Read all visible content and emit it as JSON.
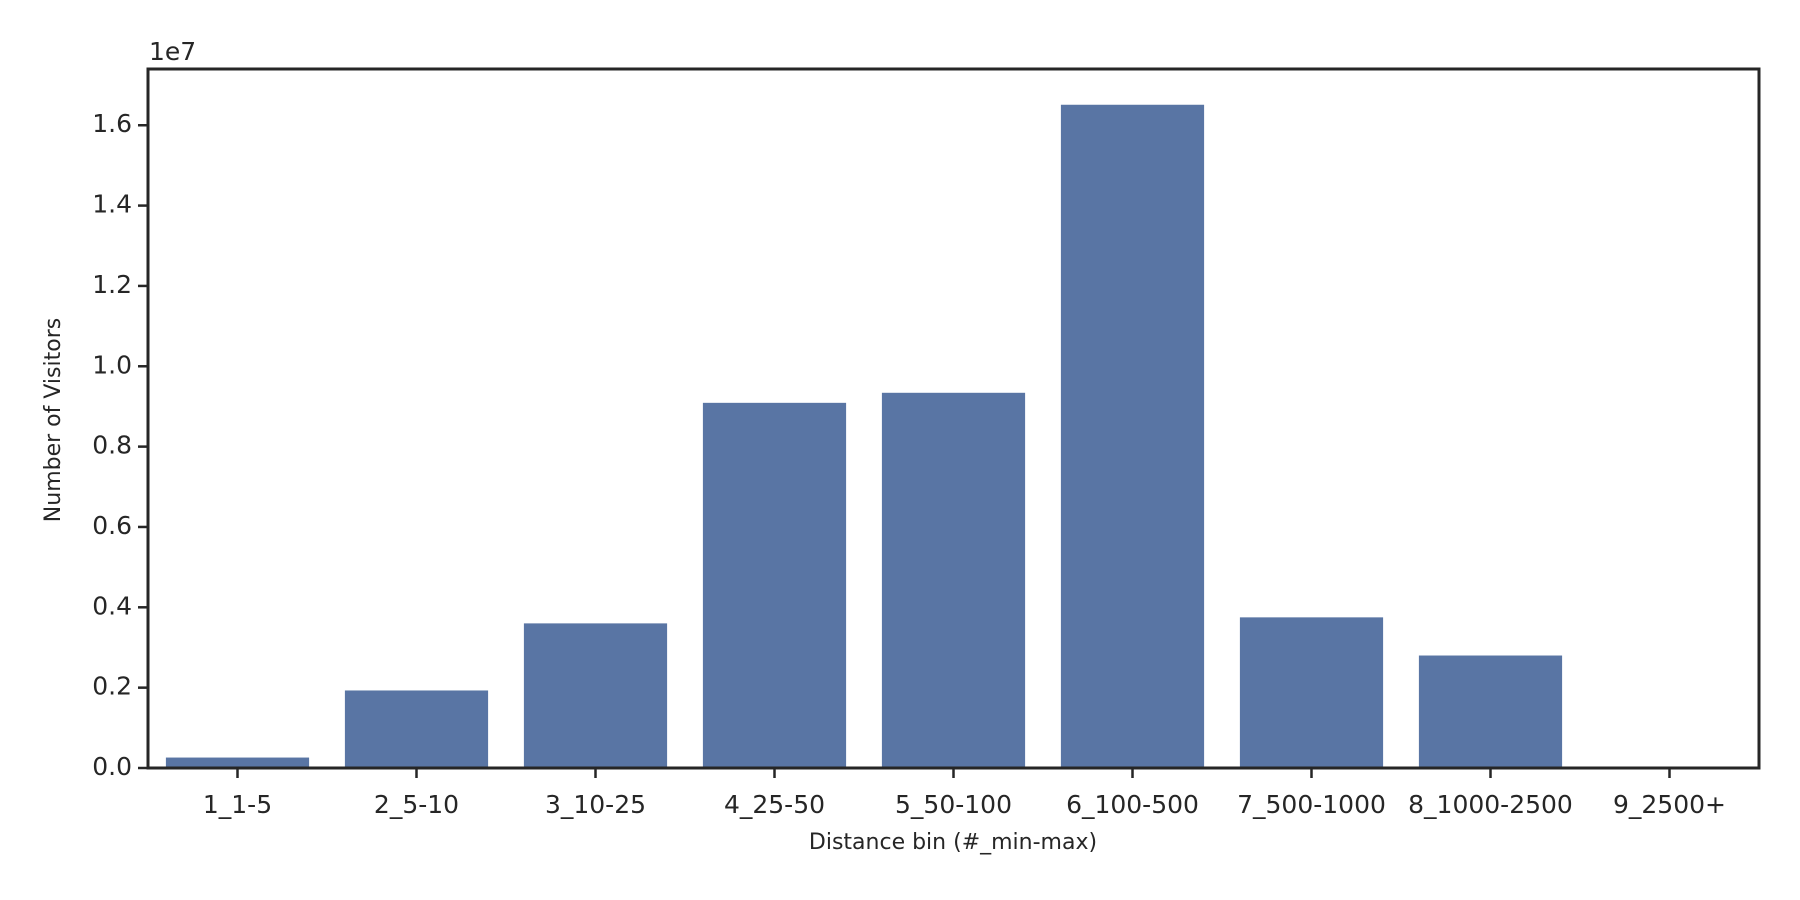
{
  "chart_data": {
    "type": "bar",
    "x_label": "Distance bin (#_min-max)",
    "y_label": "Number of Visitors",
    "y_offset_label": "1e7",
    "categories": [
      "1_1-5",
      "2_5-10",
      "3_10-25",
      "4_25-50",
      "5_50-100",
      "6_100-500",
      "7_500-1000",
      "8_1000-2500",
      "9_2500+"
    ],
    "values": [
      260000,
      1930000,
      3600000,
      9090000,
      9340000,
      16510000,
      3750000,
      2800000,
      0
    ],
    "color": "#5975a4",
    "ylim": [
      0,
      17400000
    ],
    "yticks": [
      {
        "value": 0,
        "label": "0.0"
      },
      {
        "value": 2000000,
        "label": "0.2"
      },
      {
        "value": 4000000,
        "label": "0.4"
      },
      {
        "value": 6000000,
        "label": "0.6"
      },
      {
        "value": 8000000,
        "label": "0.8"
      },
      {
        "value": 10000000,
        "label": "1.0"
      },
      {
        "value": 12000000,
        "label": "1.2"
      },
      {
        "value": 14000000,
        "label": "1.4"
      },
      {
        "value": 16000000,
        "label": "1.6"
      }
    ],
    "grid": false
  }
}
